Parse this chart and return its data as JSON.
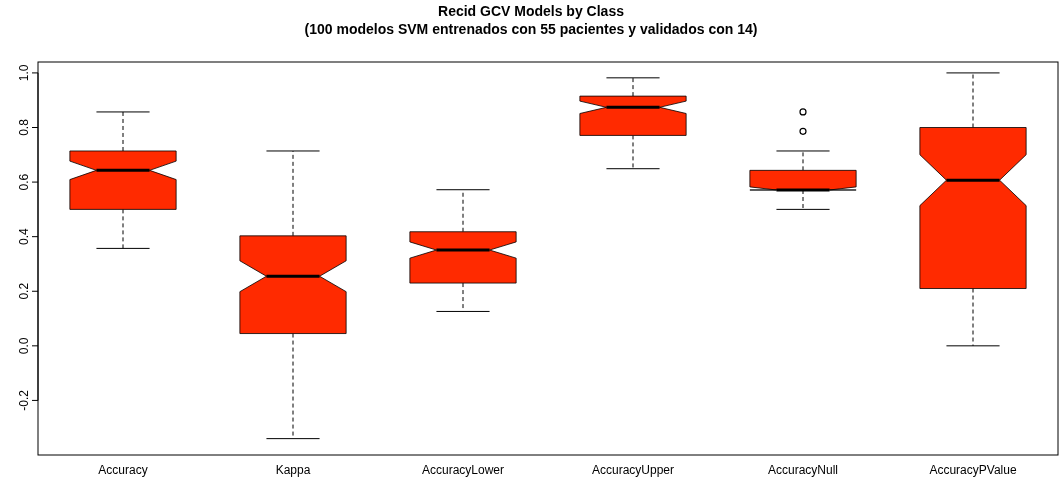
{
  "chart_data": {
    "type": "box",
    "title": "Recid GCV Models by Class",
    "subtitle": "(100 modelos SVM entrenados con 55 pacientes y validados con 14)",
    "categories": [
      "Accuracy",
      "Kappa",
      "AccuracyLower",
      "AccuracyUpper",
      "AccuracyNull",
      "AccuracyPValue"
    ],
    "color": "#ff2a00",
    "boxes": [
      {
        "low": 0.357,
        "q1": 0.5,
        "median": 0.643,
        "q3": 0.714,
        "high": 0.857
      },
      {
        "low": -0.34,
        "q1": 0.045,
        "median": 0.255,
        "q3": 0.403,
        "high": 0.714
      },
      {
        "low": 0.126,
        "q1": 0.23,
        "median": 0.351,
        "q3": 0.418,
        "high": 0.572
      },
      {
        "low": 0.649,
        "q1": 0.771,
        "median": 0.874,
        "q3": 0.915,
        "high": 0.982
      },
      {
        "low": 0.5,
        "q1": 0.571,
        "median": 0.571,
        "q3": 0.643,
        "high": 0.714,
        "outliers": [
          0.786,
          0.857
        ]
      },
      {
        "low": 0.0,
        "q1": 0.21,
        "median": 0.607,
        "q3": 0.8,
        "high": 1.0
      }
    ],
    "ylim": [
      -0.4,
      1.04
    ],
    "yticks": [
      {
        "value": -0.2,
        "label": "-0.2"
      },
      {
        "value": 0,
        "label": "0.0"
      },
      {
        "value": 0.2,
        "label": "0.2"
      },
      {
        "value": 0.4,
        "label": "0.4"
      },
      {
        "value": 0.6,
        "label": "0.6"
      },
      {
        "value": 0.8,
        "label": "0.8"
      },
      {
        "value": 1,
        "label": "1.0"
      }
    ],
    "grid": false
  }
}
